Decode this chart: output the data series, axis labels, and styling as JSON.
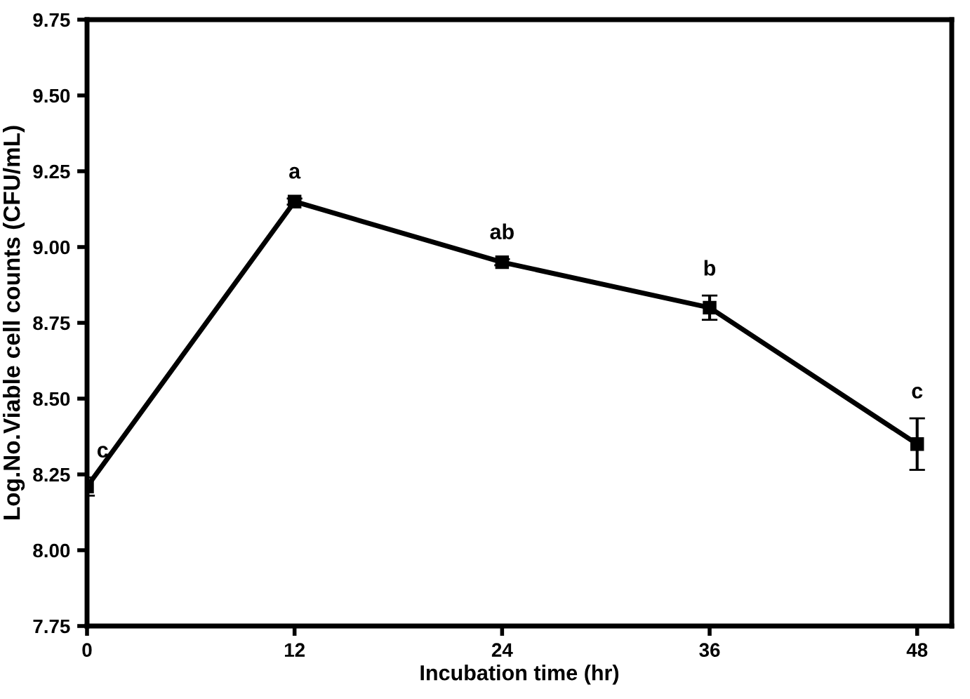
{
  "chart_data": {
    "type": "line",
    "xlabel": "Incubation time (hr)",
    "ylabel": "Log.No.Viable cell counts (CFU/mL)",
    "x": [
      0,
      12,
      24,
      36,
      48
    ],
    "series": [
      {
        "color": "#000000",
        "values": [
          8.21,
          9.15,
          8.95,
          8.8,
          8.35
        ],
        "errors": [
          0.03,
          0.01,
          0.01,
          0.04,
          0.085
        ]
      }
    ],
    "marker": "square",
    "line_style": "solid",
    "grid": false,
    "legend": false,
    "xlim": [
      0,
      50
    ],
    "xticks": [
      0,
      12,
      24,
      36,
      48
    ],
    "ylim": [
      7.75,
      9.75
    ],
    "yticks": [
      {
        "value": 7.75,
        "label": "7.75"
      },
      {
        "value": 8,
        "label": "8.00"
      },
      {
        "value": 8.25,
        "label": "8.25"
      },
      {
        "value": 8.5,
        "label": "8.50"
      },
      {
        "value": 8.75,
        "label": "8.75"
      },
      {
        "value": 9,
        "label": "9.00"
      },
      {
        "value": 9.25,
        "label": "9.25"
      },
      {
        "value": 9.5,
        "label": "9.50"
      },
      {
        "value": 9.75,
        "label": "9.75"
      }
    ],
    "annotations": [
      {
        "text": "c",
        "x": 0,
        "y": 8.21
      },
      {
        "text": "a",
        "x": 12,
        "y": 9.15
      },
      {
        "text": "ab",
        "x": 24,
        "y": 8.95
      },
      {
        "text": "b",
        "x": 36,
        "y": 8.8
      },
      {
        "text": "c",
        "x": 48,
        "y": 8.35
      }
    ]
  }
}
